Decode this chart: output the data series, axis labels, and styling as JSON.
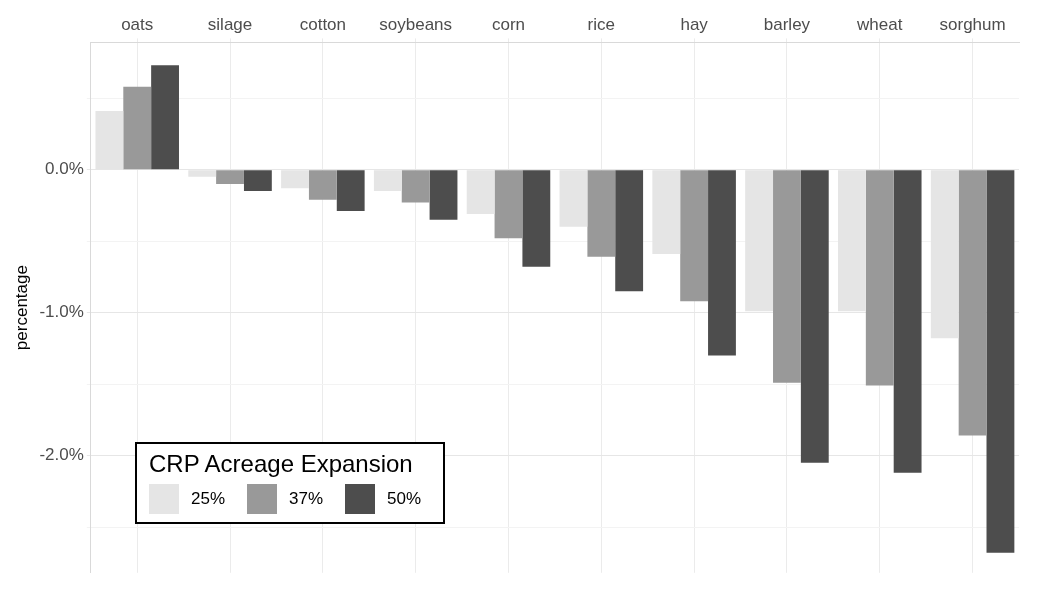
{
  "chart_data": {
    "type": "bar",
    "ylabel": "percentage",
    "legend_title": "CRP Acreage Expansion",
    "categories": [
      "oats",
      "silage",
      "cotton",
      "soybeans",
      "corn",
      "rice",
      "hay",
      "barley",
      "wheat",
      "sorghum"
    ],
    "series": [
      {
        "name": "25%",
        "color": "#e5e5e5",
        "values": [
          0.41,
          -0.05,
          -0.13,
          -0.15,
          -0.31,
          -0.4,
          -0.59,
          -0.99,
          -0.99,
          -1.18
        ]
      },
      {
        "name": "37%",
        "color": "#999999",
        "values": [
          0.58,
          -0.1,
          -0.21,
          -0.23,
          -0.48,
          -0.61,
          -0.92,
          -1.49,
          -1.51,
          -1.86
        ]
      },
      {
        "name": "50%",
        "color": "#4d4d4d",
        "values": [
          0.73,
          -0.15,
          -0.29,
          -0.35,
          -0.68,
          -0.85,
          -1.3,
          -2.05,
          -2.12,
          -2.68
        ]
      }
    ],
    "ylim": [
      -2.82,
      0.89
    ],
    "yticks": [
      {
        "value": -2.5,
        "label": null
      },
      {
        "value": -2,
        "label": "-2.0%"
      },
      {
        "value": -1.5,
        "label": null
      },
      {
        "value": -1,
        "label": "-1.0%"
      },
      {
        "value": -0.5,
        "label": null
      },
      {
        "value": 0,
        "label": "0.0%"
      },
      {
        "value": 0.5,
        "label": null
      }
    ],
    "grid": true,
    "legend": "bottom left"
  }
}
